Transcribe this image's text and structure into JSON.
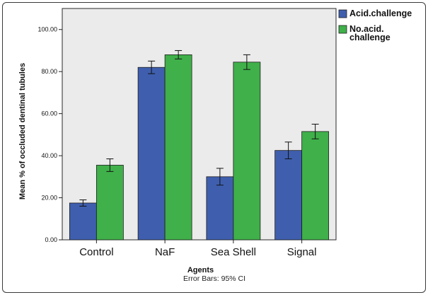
{
  "chart_data": {
    "type": "bar",
    "categories": [
      "Control",
      "NaF",
      "Sea Shell",
      "Signal"
    ],
    "series": [
      {
        "name": "Acid.challenge",
        "color": "#3f5fae",
        "values": [
          17.5,
          82.0,
          30.0,
          42.5
        ],
        "ci_low": [
          16.0,
          79.0,
          26.0,
          38.5
        ],
        "ci_high": [
          19.0,
          85.0,
          34.0,
          46.5
        ]
      },
      {
        "name": "No.acid.\nchallenge",
        "color": "#3fb04a",
        "values": [
          35.5,
          88.0,
          84.5,
          51.5
        ],
        "ci_low": [
          32.5,
          86.0,
          81.0,
          48.0
        ],
        "ci_high": [
          38.5,
          90.0,
          88.0,
          55.0
        ]
      }
    ],
    "ylim": [
      0,
      110
    ],
    "yticks": [
      "0.00",
      "20.00",
      "40.00",
      "60.00",
      "80.00",
      "100.00"
    ],
    "ytick_values": [
      0,
      20,
      40,
      60,
      80,
      100
    ],
    "xlabel": "Agents",
    "ylabel": "Mean % of occluded dentinal tubules",
    "legend_position": "top-right",
    "grid": false,
    "plot_background": "#ebebeb",
    "footnote": "Error Bars: 95% CI"
  }
}
